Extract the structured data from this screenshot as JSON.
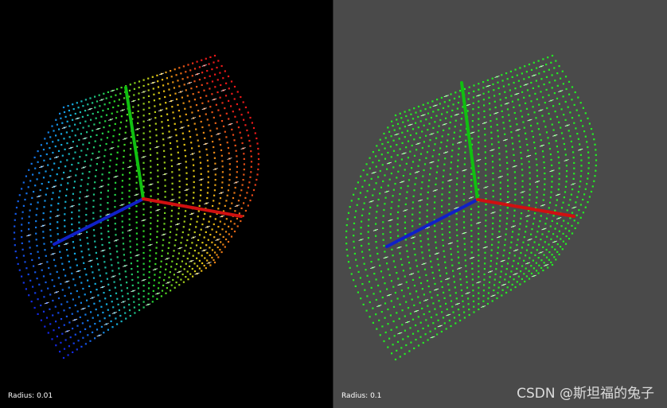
{
  "watermark": "CSDN @斯坦福的兔子",
  "viewports": [
    {
      "id": "left",
      "background": "#000000",
      "radius_label": "Radius: 0.01",
      "color_mode": "rainbow"
    },
    {
      "id": "right",
      "background": "#4a4a4a",
      "radius_label": "Radius: 0.1",
      "color_mode": "green"
    }
  ],
  "axes": {
    "x_color": "#d01010",
    "y_color": "#10c010",
    "z_color": "#1020c8"
  },
  "point_colors": {
    "uniform": "#22ee22",
    "normals": "#ffffff"
  }
}
